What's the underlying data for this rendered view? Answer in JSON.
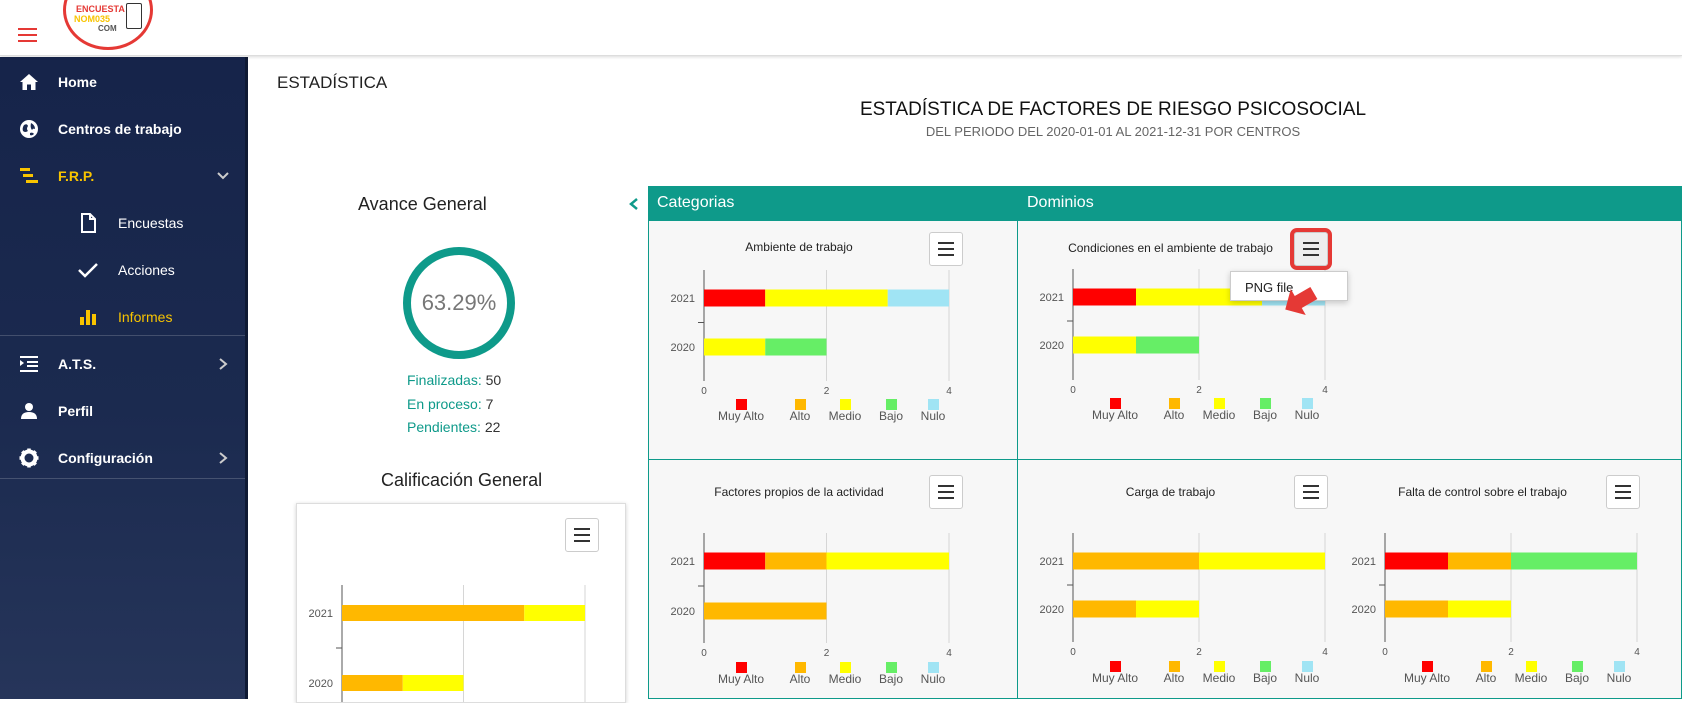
{
  "logo": {
    "line1": "ENCUESTA",
    "line2": "NOM035",
    "line3": "COM"
  },
  "sidebar": {
    "items": [
      {
        "label": "Home",
        "icon": "home-icon"
      },
      {
        "label": "Centros de trabajo",
        "icon": "globe-icon"
      },
      {
        "label": "F.R.P.",
        "icon": "list-tree-icon"
      },
      {
        "label": "Encuestas",
        "icon": "document-icon"
      },
      {
        "label": "Acciones",
        "icon": "check-icon"
      },
      {
        "label": "Informes",
        "icon": "bar-chart-icon"
      },
      {
        "label": "A.T.S.",
        "icon": "indent-list-icon"
      },
      {
        "label": "Perfil",
        "icon": "user-icon"
      },
      {
        "label": "Configuración",
        "icon": "gear-icon"
      }
    ]
  },
  "page": {
    "title": "ESTADÍSTICA",
    "report_title": "ESTADÍSTICA DE FACTORES DE RIESGO PSICOSOCIAL",
    "report_subtitle": "DEL PERIODO DEL 2020-01-01 AL 2021-12-31 POR CENTROS"
  },
  "avance": {
    "title": "Avance General",
    "percent": "63.29%",
    "finalizadas_label": "Finalizadas:",
    "finalizadas_value": "50",
    "proceso_label": "En proceso:",
    "proceso_value": "7",
    "pendientes_label": "Pendientes:",
    "pendientes_value": "22"
  },
  "calificacion": {
    "title": "Calificación General"
  },
  "sections": {
    "categorias": "Categorias",
    "dominios": "Dominios"
  },
  "dropdown": {
    "png_label": "PNG file"
  },
  "colors": {
    "Muy Alto": "#ff0000",
    "Alto": "#ffb800",
    "Medio": "#ffff00",
    "Bajo": "#66ee66",
    "Nulo": "#a0e4f4",
    "teal": "#0e9a8a"
  },
  "chart_data": [
    {
      "type": "bar",
      "title": "Ambiente de trabajo",
      "categories": [
        "2021",
        "2020"
      ],
      "series": [
        {
          "name": "Muy Alto",
          "values": [
            1,
            0
          ]
        },
        {
          "name": "Alto",
          "values": [
            0,
            0
          ]
        },
        {
          "name": "Medio",
          "values": [
            2,
            1
          ]
        },
        {
          "name": "Bajo",
          "values": [
            0,
            1
          ]
        },
        {
          "name": "Nulo",
          "values": [
            1,
            0
          ]
        }
      ],
      "xlim": [
        0,
        4
      ],
      "xticks": [
        "0",
        "2",
        "4"
      ]
    },
    {
      "type": "bar",
      "title": "Condiciones en el ambiente de trabajo",
      "categories": [
        "2021",
        "2020"
      ],
      "series": [
        {
          "name": "Muy Alto",
          "values": [
            1,
            0
          ]
        },
        {
          "name": "Alto",
          "values": [
            0,
            0
          ]
        },
        {
          "name": "Medio",
          "values": [
            2,
            1
          ]
        },
        {
          "name": "Bajo",
          "values": [
            0,
            1
          ]
        },
        {
          "name": "Nulo",
          "values": [
            1,
            0
          ]
        }
      ],
      "xlim": [
        0,
        4
      ],
      "xticks": [
        "0",
        "2",
        "4"
      ]
    },
    {
      "type": "bar",
      "title": "Factores propios de la actividad",
      "categories": [
        "2021",
        "2020"
      ],
      "series": [
        {
          "name": "Muy Alto",
          "values": [
            1,
            0
          ]
        },
        {
          "name": "Alto",
          "values": [
            1,
            2
          ]
        },
        {
          "name": "Medio",
          "values": [
            2,
            0
          ]
        },
        {
          "name": "Bajo",
          "values": [
            0,
            0
          ]
        },
        {
          "name": "Nulo",
          "values": [
            0,
            0
          ]
        }
      ],
      "xlim": [
        0,
        4
      ],
      "xticks": [
        "0",
        "2",
        "4"
      ]
    },
    {
      "type": "bar",
      "title": "Carga de trabajo",
      "categories": [
        "2021",
        "2020"
      ],
      "series": [
        {
          "name": "Muy Alto",
          "values": [
            0,
            0
          ]
        },
        {
          "name": "Alto",
          "values": [
            2,
            1
          ]
        },
        {
          "name": "Medio",
          "values": [
            2,
            1
          ]
        },
        {
          "name": "Bajo",
          "values": [
            0,
            0
          ]
        },
        {
          "name": "Nulo",
          "values": [
            0,
            0
          ]
        }
      ],
      "xlim": [
        0,
        4
      ],
      "xticks": [
        "0",
        "2",
        "4"
      ]
    },
    {
      "type": "bar",
      "title": "Falta de control sobre el trabajo",
      "categories": [
        "2021",
        "2020"
      ],
      "series": [
        {
          "name": "Muy Alto",
          "values": [
            1,
            0
          ]
        },
        {
          "name": "Alto",
          "values": [
            1,
            1
          ]
        },
        {
          "name": "Medio",
          "values": [
            0,
            1
          ]
        },
        {
          "name": "Bajo",
          "values": [
            2,
            0
          ]
        },
        {
          "name": "Nulo",
          "values": [
            0,
            0
          ]
        }
      ],
      "xlim": [
        0,
        4
      ],
      "xticks": [
        "0",
        "2",
        "4"
      ]
    },
    {
      "type": "bar",
      "title": "Calificación General",
      "categories": [
        "2021",
        "2020"
      ],
      "series": [
        {
          "name": "Muy Alto",
          "values": [
            0,
            0
          ]
        },
        {
          "name": "Alto",
          "values": [
            3,
            1
          ]
        },
        {
          "name": "Medio",
          "values": [
            1,
            1
          ]
        },
        {
          "name": "Bajo",
          "values": [
            0,
            0
          ]
        },
        {
          "name": "Nulo",
          "values": [
            0,
            0
          ]
        }
      ],
      "xlim": [
        0,
        4
      ]
    }
  ]
}
